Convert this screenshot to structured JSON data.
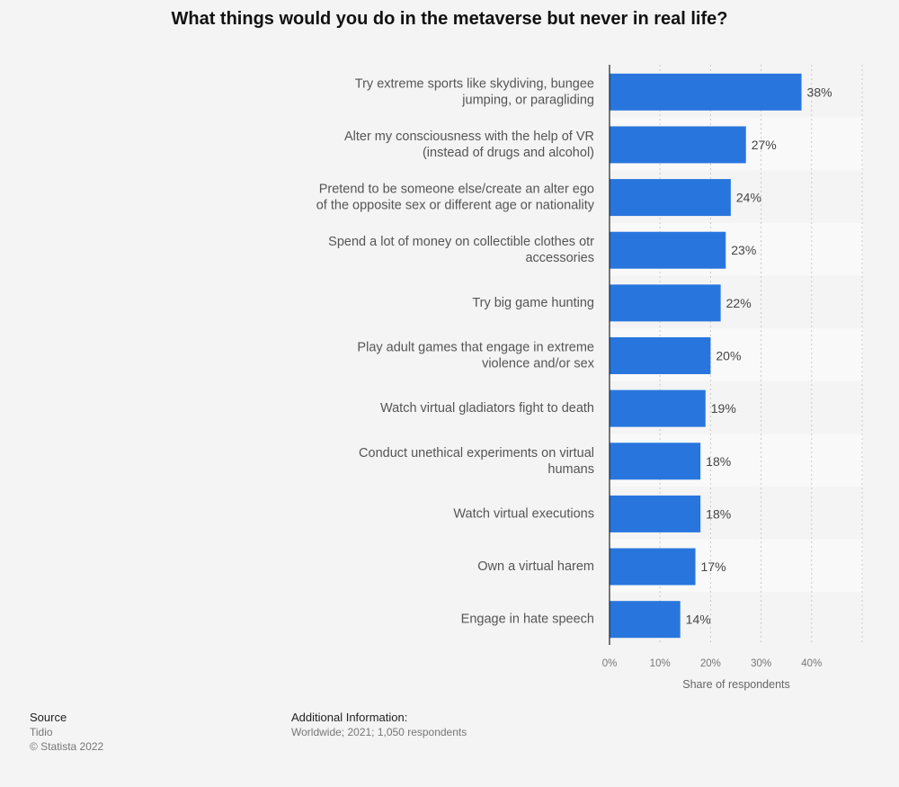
{
  "chart_data": {
    "type": "bar",
    "orientation": "horizontal",
    "title": "What things would you do in the metaverse but never in real life?",
    "categories": [
      [
        "Try extreme sports like skydiving, bungee",
        "jumping, or paragliding"
      ],
      [
        "Alter my consciousness with the help of VR",
        "(instead of drugs and alcohol)"
      ],
      [
        "Pretend to be someone else/create an alter ego",
        "of the opposite sex or different age or nationality"
      ],
      [
        "Spend a lot of money on collectible clothes otr",
        "accessories"
      ],
      [
        "Try big game hunting"
      ],
      [
        "Play adult games that engage in extreme",
        "violence and/or sex"
      ],
      [
        "Watch virtual gladiators fight to death"
      ],
      [
        "Conduct unethical experiments on virtual",
        "humans"
      ],
      [
        "Watch virtual executions"
      ],
      [
        "Own a virtual harem"
      ],
      [
        "Engage in hate speech"
      ]
    ],
    "values": [
      38,
      27,
      24,
      23,
      22,
      20,
      19,
      18,
      18,
      17,
      14
    ],
    "value_labels": [
      "38%",
      "27%",
      "24%",
      "23%",
      "22%",
      "20%",
      "19%",
      "18%",
      "18%",
      "17%",
      "14%"
    ],
    "xlabel": "Share of respondents",
    "ylabel": "",
    "xlim": [
      0,
      50
    ],
    "xticks": [
      0,
      10,
      20,
      30,
      40
    ],
    "xtick_labels": [
      "0%",
      "10%",
      "20%",
      "30%",
      "40%"
    ],
    "grid": true,
    "bar_color": "#2876dd",
    "band_color": "#f9f9f9",
    "background_color": "#f4f4f4"
  },
  "footer": {
    "source_heading": "Source",
    "source_name": "Tidio",
    "copyright": "© Statista 2022",
    "info_heading": "Additional Information:",
    "info_text": "Worldwide; 2021; 1,050 respondents"
  }
}
